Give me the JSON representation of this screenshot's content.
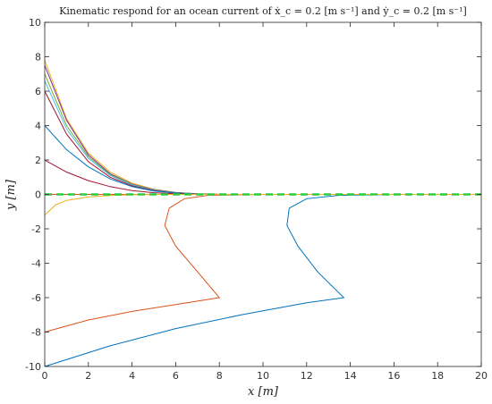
{
  "chart_data": {
    "type": "line",
    "title": "Kinematic respond for an ocean current of ẋ_c = 0.2 [m s⁻¹] and ẏ_c = 0.2 [m s⁻¹]",
    "xlabel": "x [m]",
    "ylabel": "y [m]",
    "xlim": [
      0,
      20
    ],
    "ylim": [
      -10,
      10
    ],
    "xticks": [
      0,
      2,
      4,
      6,
      8,
      10,
      12,
      14,
      16,
      18,
      20
    ],
    "yticks": [
      -10,
      -8,
      -6,
      -4,
      -2,
      0,
      2,
      4,
      6,
      8,
      10
    ],
    "grid": false,
    "series": [
      {
        "color": "#0072BD",
        "points": [
          [
            0.0,
            -10.0
          ],
          [
            3.0,
            -8.8
          ],
          [
            6.0,
            -7.8
          ],
          [
            9.0,
            -7.0
          ],
          [
            12.0,
            -6.3
          ],
          [
            13.7,
            -6.0
          ],
          [
            12.5,
            -4.5
          ],
          [
            11.6,
            -3.0
          ],
          [
            11.1,
            -1.8
          ],
          [
            11.2,
            -0.8
          ],
          [
            12.0,
            -0.25
          ],
          [
            13.5,
            -0.05
          ],
          [
            16.0,
            0.0
          ],
          [
            20.0,
            0.0
          ]
        ]
      },
      {
        "color": "#D95319",
        "points": [
          [
            0.0,
            -8.0
          ],
          [
            2.0,
            -7.3
          ],
          [
            4.0,
            -6.8
          ],
          [
            6.0,
            -6.4
          ],
          [
            8.0,
            -6.0
          ],
          [
            7.0,
            -4.5
          ],
          [
            6.0,
            -3.0
          ],
          [
            5.5,
            -1.8
          ],
          [
            5.7,
            -0.8
          ],
          [
            6.4,
            -0.25
          ],
          [
            7.5,
            -0.05
          ],
          [
            10.0,
            0.0
          ],
          [
            20.0,
            0.0
          ]
        ]
      },
      {
        "color": "#EDB120",
        "points": [
          [
            0.0,
            7.8
          ],
          [
            1.0,
            4.4
          ],
          [
            2.0,
            2.4
          ],
          [
            3.0,
            1.3
          ],
          [
            4.0,
            0.65
          ],
          [
            5.0,
            0.3
          ],
          [
            6.0,
            0.12
          ],
          [
            7.0,
            0.04
          ],
          [
            8.0,
            0.0
          ],
          [
            20.0,
            0.0
          ]
        ]
      },
      {
        "color": "#7E2F8E",
        "points": [
          [
            0.0,
            7.5
          ],
          [
            1.0,
            4.3
          ],
          [
            2.0,
            2.3
          ],
          [
            3.0,
            1.2
          ],
          [
            4.0,
            0.6
          ],
          [
            5.0,
            0.28
          ],
          [
            6.0,
            0.11
          ],
          [
            7.0,
            0.03
          ],
          [
            8.0,
            0.0
          ],
          [
            20.0,
            0.0
          ]
        ]
      },
      {
        "color": "#77AC30",
        "points": [
          [
            0.0,
            7.0
          ],
          [
            1.0,
            4.0
          ],
          [
            2.0,
            2.2
          ],
          [
            3.0,
            1.15
          ],
          [
            4.0,
            0.58
          ],
          [
            5.0,
            0.26
          ],
          [
            6.0,
            0.1
          ],
          [
            7.0,
            0.03
          ],
          [
            8.0,
            0.0
          ],
          [
            20.0,
            0.0
          ]
        ]
      },
      {
        "color": "#4DBEEE",
        "points": [
          [
            0.0,
            6.6
          ],
          [
            1.0,
            3.8
          ],
          [
            2.0,
            2.1
          ],
          [
            3.0,
            1.1
          ],
          [
            4.0,
            0.55
          ],
          [
            5.0,
            0.25
          ],
          [
            6.0,
            0.09
          ],
          [
            7.0,
            0.03
          ],
          [
            8.0,
            0.0
          ],
          [
            20.0,
            0.0
          ]
        ]
      },
      {
        "color": "#A2142F",
        "points": [
          [
            0.0,
            6.0
          ],
          [
            1.0,
            3.5
          ],
          [
            2.0,
            1.9
          ],
          [
            3.0,
            1.0
          ],
          [
            4.0,
            0.5
          ],
          [
            5.0,
            0.22
          ],
          [
            6.0,
            0.08
          ],
          [
            7.0,
            0.02
          ],
          [
            8.0,
            0.0
          ],
          [
            20.0,
            0.0
          ]
        ]
      },
      {
        "color": "#0072BD",
        "points": [
          [
            0.0,
            4.0
          ],
          [
            1.0,
            2.6
          ],
          [
            2.0,
            1.6
          ],
          [
            3.0,
            0.9
          ],
          [
            4.0,
            0.45
          ],
          [
            5.0,
            0.2
          ],
          [
            6.0,
            0.08
          ],
          [
            7.0,
            0.02
          ],
          [
            8.0,
            0.0
          ],
          [
            20.0,
            0.0
          ]
        ]
      },
      {
        "color": "#A2142F",
        "points": [
          [
            0.0,
            2.0
          ],
          [
            1.0,
            1.3
          ],
          [
            2.0,
            0.8
          ],
          [
            3.0,
            0.45
          ],
          [
            4.0,
            0.22
          ],
          [
            5.0,
            0.1
          ],
          [
            6.0,
            0.04
          ],
          [
            7.0,
            0.01
          ],
          [
            8.0,
            0.0
          ],
          [
            20.0,
            0.0
          ]
        ]
      },
      {
        "color": "#D95319",
        "points": [
          [
            0.0,
            0.0
          ],
          [
            2.0,
            0.0
          ],
          [
            5.0,
            0.0
          ],
          [
            10.0,
            0.0
          ],
          [
            20.0,
            0.0
          ]
        ]
      },
      {
        "color": "#EDB120",
        "points": [
          [
            0.0,
            -1.2
          ],
          [
            0.5,
            -0.6
          ],
          [
            1.0,
            -0.35
          ],
          [
            2.0,
            -0.15
          ],
          [
            3.0,
            -0.06
          ],
          [
            4.0,
            -0.02
          ],
          [
            5.0,
            0.0
          ],
          [
            20.0,
            0.0
          ]
        ]
      }
    ],
    "reference_line": {
      "color": "#2ECC40",
      "style": "dashed",
      "y": 0,
      "x": [
        0,
        20
      ]
    }
  }
}
